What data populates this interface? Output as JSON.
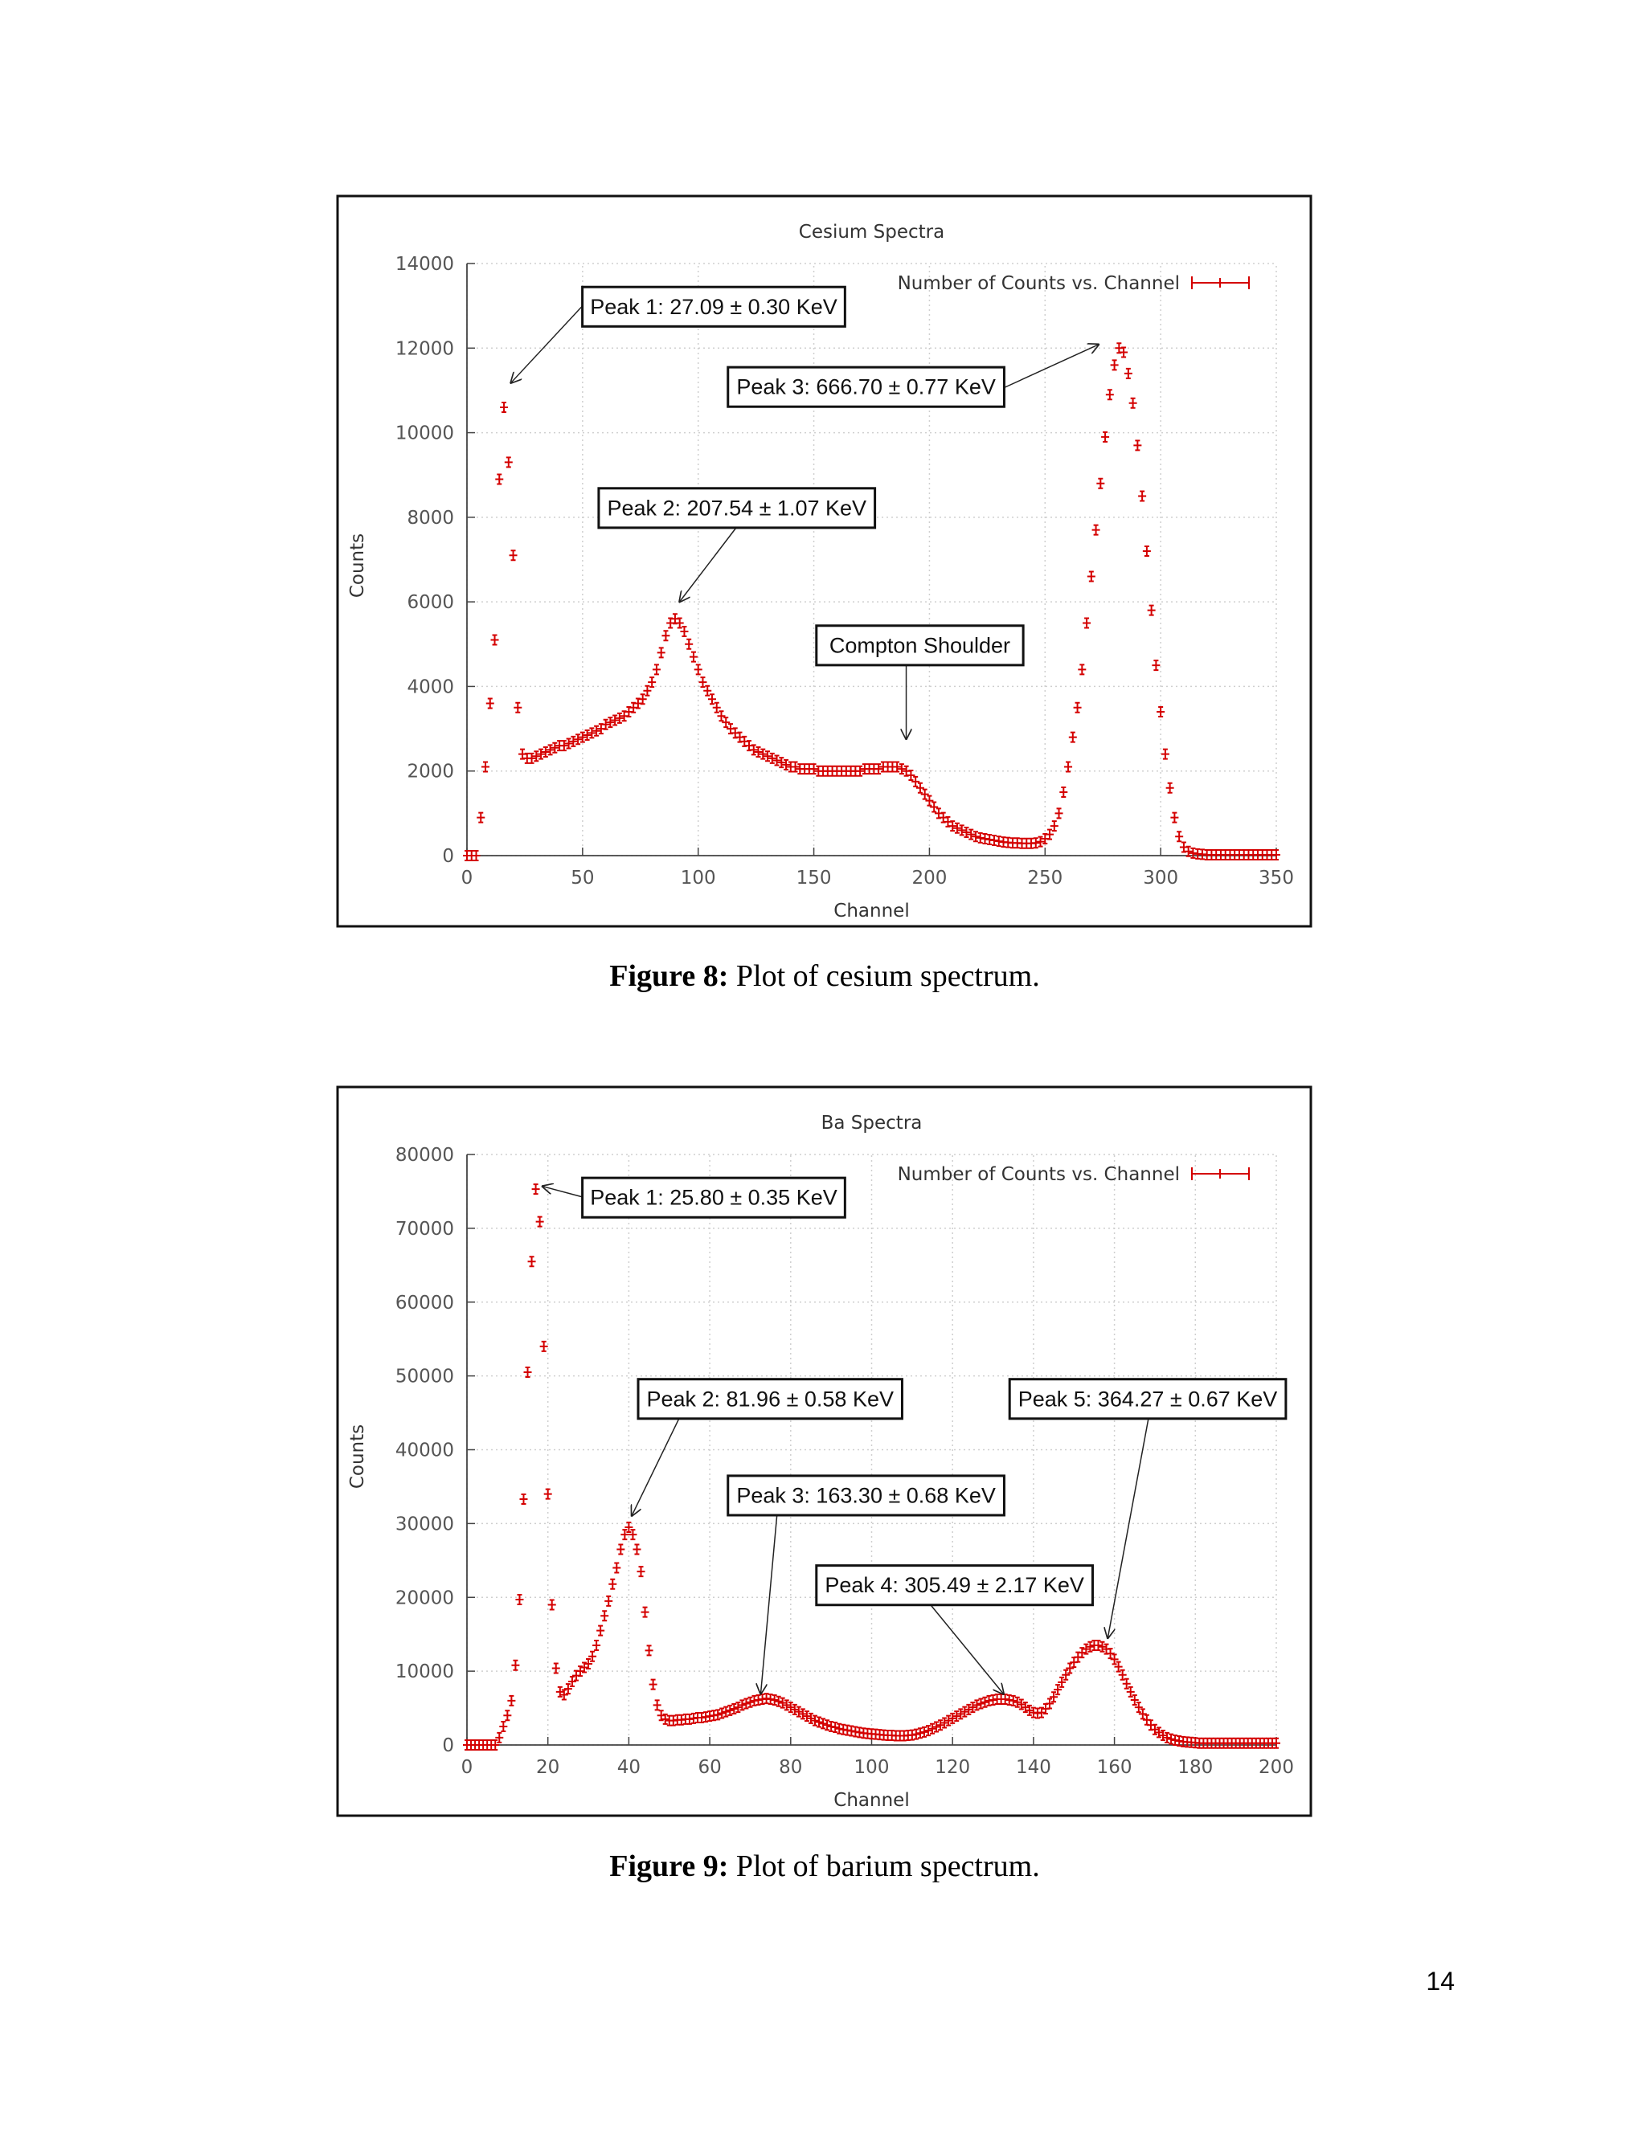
{
  "chart_data": [
    {
      "type": "scatter",
      "title": "Cesium Spectra",
      "x_label": "Channel",
      "y_label": "Counts",
      "xlim": [
        0,
        350
      ],
      "xticks": [
        0,
        50,
        100,
        150,
        200,
        250,
        300,
        350
      ],
      "ylim": [
        0,
        14000
      ],
      "yticks": [
        0,
        2000,
        4000,
        6000,
        8000,
        10000,
        12000,
        14000
      ],
      "grid": true,
      "legend": "top right",
      "annotations": [
        "Peak 1: 27.09 ± 0.30 KeV",
        "Peak 3: 666.70 ± 0.77 KeV",
        "Peak 2: 207.54 ± 1.07 KeV",
        "Compton Shoulder"
      ],
      "series": [
        {
          "name": "Number of Counts vs. Channel",
          "color": "#d40000",
          "x": [
            0,
            2,
            4,
            6,
            8,
            10,
            12,
            14,
            16,
            18,
            20,
            22,
            24,
            26,
            28,
            30,
            32,
            34,
            36,
            38,
            40,
            42,
            44,
            46,
            48,
            50,
            52,
            54,
            56,
            58,
            60,
            62,
            64,
            66,
            68,
            70,
            72,
            74,
            76,
            78,
            80,
            82,
            84,
            86,
            88,
            90,
            92,
            94,
            96,
            98,
            100,
            102,
            104,
            106,
            108,
            110,
            112,
            114,
            116,
            118,
            120,
            122,
            124,
            126,
            128,
            130,
            132,
            134,
            136,
            138,
            140,
            142,
            144,
            146,
            148,
            150,
            152,
            154,
            156,
            158,
            160,
            162,
            164,
            166,
            168,
            170,
            172,
            174,
            176,
            178,
            180,
            182,
            184,
            186,
            188,
            190,
            192,
            194,
            196,
            198,
            200,
            202,
            204,
            206,
            208,
            210,
            212,
            214,
            216,
            218,
            220,
            222,
            224,
            226,
            228,
            230,
            232,
            234,
            236,
            238,
            240,
            242,
            244,
            246,
            248,
            250,
            252,
            254,
            256,
            258,
            260,
            262,
            264,
            266,
            268,
            270,
            272,
            274,
            276,
            278,
            280,
            282,
            284,
            286,
            288,
            290,
            292,
            294,
            296,
            298,
            300,
            302,
            304,
            306,
            308,
            310,
            312,
            314,
            316,
            318,
            320,
            322,
            324,
            326,
            328,
            330,
            332,
            334,
            336,
            338,
            340,
            342,
            344,
            346,
            348,
            350
          ],
          "values": [
            0,
            0,
            0,
            900,
            2100,
            3600,
            5100,
            8900,
            10600,
            9300,
            7100,
            3500,
            2400,
            2300,
            2300,
            2350,
            2400,
            2450,
            2500,
            2550,
            2600,
            2600,
            2650,
            2700,
            2750,
            2800,
            2850,
            2900,
            2950,
            3000,
            3100,
            3150,
            3200,
            3250,
            3300,
            3400,
            3500,
            3600,
            3700,
            3900,
            4100,
            4400,
            4800,
            5200,
            5500,
            5600,
            5500,
            5300,
            5000,
            4700,
            4400,
            4100,
            3900,
            3700,
            3500,
            3300,
            3150,
            3000,
            2900,
            2800,
            2700,
            2600,
            2500,
            2450,
            2400,
            2350,
            2300,
            2250,
            2200,
            2150,
            2100,
            2100,
            2050,
            2050,
            2050,
            2050,
            2000,
            2000,
            2000,
            2000,
            2000,
            2000,
            2000,
            2000,
            2000,
            2000,
            2050,
            2050,
            2050,
            2050,
            2100,
            2100,
            2100,
            2100,
            2050,
            2000,
            1900,
            1750,
            1600,
            1450,
            1300,
            1150,
            1000,
            900,
            800,
            700,
            650,
            600,
            550,
            500,
            450,
            420,
            400,
            380,
            360,
            340,
            320,
            310,
            300,
            300,
            290,
            290,
            290,
            300,
            330,
            400,
            500,
            700,
            1000,
            1500,
            2100,
            2800,
            3500,
            4400,
            5500,
            6600,
            7700,
            8800,
            9900,
            10900,
            11600,
            12000,
            11900,
            11400,
            10700,
            9700,
            8500,
            7200,
            5800,
            4500,
            3400,
            2400,
            1600,
            900,
            450,
            200,
            100,
            60,
            40,
            30,
            20,
            20,
            20,
            20,
            20,
            20,
            20,
            20,
            20,
            20,
            20,
            20,
            20,
            20,
            20,
            20
          ]
        }
      ]
    },
    {
      "type": "scatter",
      "title": "Ba Spectra",
      "x_label": "Channel",
      "y_label": "Counts",
      "xlim": [
        0,
        200
      ],
      "xticks": [
        0,
        20,
        40,
        60,
        80,
        100,
        120,
        140,
        160,
        180,
        200
      ],
      "ylim": [
        0,
        80000
      ],
      "yticks": [
        0,
        10000,
        20000,
        30000,
        40000,
        50000,
        60000,
        70000,
        80000
      ],
      "grid": true,
      "legend": "top right",
      "annotations": [
        "Peak 1: 25.80 ± 0.35 KeV",
        "Peak 2: 81.96 ± 0.58 KeV",
        "Peak 5: 364.27 ± 0.67 KeV",
        "Peak 3: 163.30 ± 0.68 KeV",
        "Peak 4: 305.49 ± 2.17 KeV"
      ],
      "series": [
        {
          "name": "Number of Counts vs. Channel",
          "color": "#d40000",
          "x": [
            0,
            1,
            2,
            3,
            4,
            5,
            6,
            7,
            8,
            9,
            10,
            11,
            12,
            13,
            14,
            15,
            16,
            17,
            18,
            19,
            20,
            21,
            22,
            23,
            24,
            25,
            26,
            27,
            28,
            29,
            30,
            31,
            32,
            33,
            34,
            35,
            36,
            37,
            38,
            39,
            40,
            41,
            42,
            43,
            44,
            45,
            46,
            47,
            48,
            49,
            50,
            51,
            52,
            53,
            54,
            55,
            56,
            57,
            58,
            59,
            60,
            61,
            62,
            63,
            64,
            65,
            66,
            67,
            68,
            69,
            70,
            71,
            72,
            73,
            74,
            75,
            76,
            77,
            78,
            79,
            80,
            81,
            82,
            83,
            84,
            85,
            86,
            87,
            88,
            89,
            90,
            91,
            92,
            93,
            94,
            95,
            96,
            97,
            98,
            99,
            100,
            101,
            102,
            103,
            104,
            105,
            106,
            107,
            108,
            109,
            110,
            111,
            112,
            113,
            114,
            115,
            116,
            117,
            118,
            119,
            120,
            121,
            122,
            123,
            124,
            125,
            126,
            127,
            128,
            129,
            130,
            131,
            132,
            133,
            134,
            135,
            136,
            137,
            138,
            139,
            140,
            141,
            142,
            143,
            144,
            145,
            146,
            147,
            148,
            149,
            150,
            151,
            152,
            153,
            154,
            155,
            156,
            157,
            158,
            159,
            160,
            161,
            162,
            163,
            164,
            165,
            166,
            167,
            168,
            169,
            170,
            171,
            172,
            173,
            174,
            175,
            176,
            177,
            178,
            179,
            180,
            181,
            182,
            183,
            184,
            185,
            186,
            187,
            188,
            189,
            190,
            191,
            192,
            193,
            194,
            195,
            196,
            197,
            198,
            199,
            200
          ],
          "values": [
            0,
            0,
            0,
            0,
            0,
            0,
            0,
            0,
            1000,
            2500,
            4000,
            6000,
            10800,
            19700,
            33300,
            50500,
            65500,
            75300,
            70900,
            54000,
            34000,
            19000,
            10400,
            7200,
            6800,
            7600,
            8600,
            9400,
            10000,
            10500,
            11000,
            12000,
            13500,
            15500,
            17500,
            19500,
            21800,
            24000,
            26500,
            28500,
            29500,
            28500,
            26500,
            23500,
            18000,
            12800,
            8200,
            5400,
            4000,
            3500,
            3300,
            3300,
            3400,
            3400,
            3500,
            3500,
            3600,
            3700,
            3700,
            3800,
            3900,
            4000,
            4100,
            4300,
            4500,
            4700,
            4900,
            5100,
            5400,
            5600,
            5800,
            6000,
            6100,
            6200,
            6300,
            6200,
            6100,
            5900,
            5700,
            5400,
            5100,
            4800,
            4500,
            4200,
            3900,
            3600,
            3300,
            3100,
            2900,
            2700,
            2500,
            2400,
            2200,
            2100,
            2000,
            1900,
            1800,
            1700,
            1600,
            1550,
            1500,
            1450,
            1400,
            1350,
            1300,
            1300,
            1250,
            1250,
            1250,
            1300,
            1350,
            1450,
            1600,
            1750,
            1950,
            2200,
            2450,
            2700,
            3000,
            3300,
            3600,
            3900,
            4200,
            4500,
            4800,
            5100,
            5400,
            5600,
            5800,
            6000,
            6100,
            6200,
            6200,
            6200,
            6100,
            6000,
            5800,
            5500,
            5100,
            4700,
            4400,
            4300,
            4400,
            4900,
            5600,
            6500,
            7500,
            8500,
            9500,
            10400,
            11200,
            11900,
            12500,
            13000,
            13300,
            13500,
            13500,
            13300,
            13000,
            12400,
            11600,
            10600,
            9500,
            8300,
            7200,
            6100,
            5100,
            4200,
            3400,
            2700,
            2100,
            1700,
            1300,
            1000,
            800,
            650,
            550,
            450,
            400,
            350,
            300,
            250,
            250,
            250,
            250,
            250,
            250,
            250,
            250,
            250,
            250,
            250,
            250,
            250,
            250,
            250,
            250,
            250,
            250,
            250,
            250
          ]
        }
      ]
    }
  ],
  "captions": [
    {
      "label": "Figure 8:",
      "text": " Plot of cesium spectrum."
    },
    {
      "label": "Figure 9:",
      "text": " Plot of barium spectrum."
    }
  ],
  "page_number": 14
}
